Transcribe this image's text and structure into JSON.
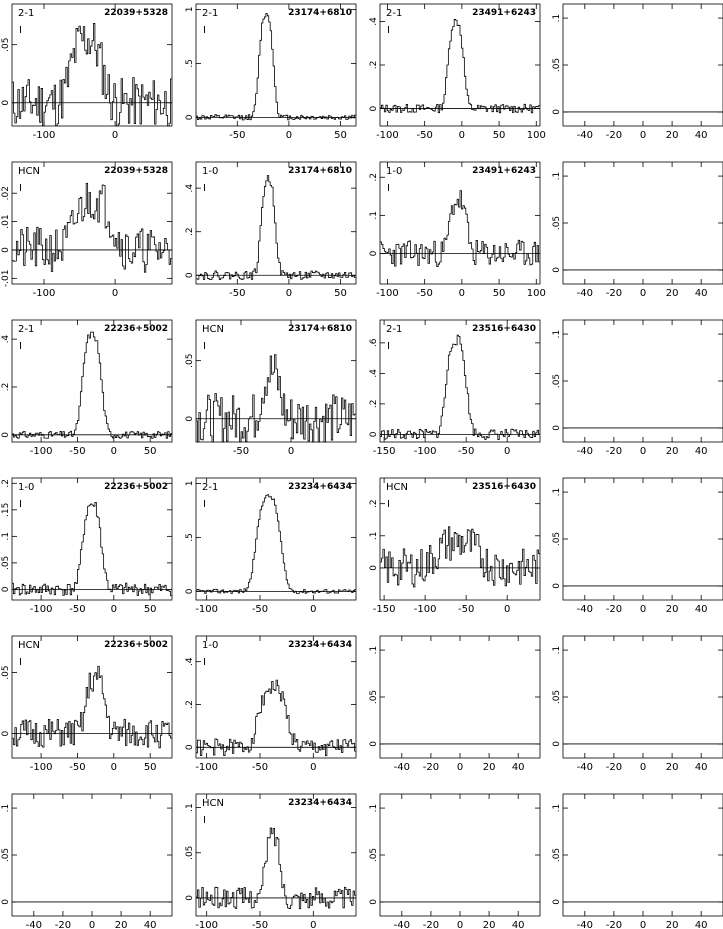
{
  "chart_data": [
    {
      "type": "line",
      "line": "2-1",
      "source": "22039+5328",
      "mark": "I",
      "xlim": [
        -145,
        80
      ],
      "ylim": [
        -0.02,
        0.085
      ],
      "xticks": [
        -100,
        0
      ],
      "yticks": [
        0,
        0.05
      ],
      "peaks": [
        {
          "c": -40,
          "w": 50,
          "a": 0.055
        }
      ],
      "noise": 0.022,
      "seed": 11
    },
    {
      "type": "line",
      "line": "2-1",
      "source": "23174+6810",
      "mark": "I",
      "xlim": [
        -90,
        65
      ],
      "ylim": [
        -0.08,
        1.05
      ],
      "xticks": [
        -50,
        0,
        50
      ],
      "yticks": [
        0,
        0.5,
        1
      ],
      "peaks": [
        {
          "c": -22,
          "w": 16,
          "a": 0.95
        }
      ],
      "noise": 0.025,
      "seed": 12
    },
    {
      "type": "line",
      "line": "2-1",
      "source": "23491+6243",
      "mark": "I",
      "xlim": [
        -110,
        105
      ],
      "ylim": [
        -0.08,
        0.48
      ],
      "xticks": [
        -100,
        -50,
        0,
        50,
        100
      ],
      "yticks": [
        0,
        0.2,
        0.4
      ],
      "peaks": [
        {
          "c": -8,
          "w": 24,
          "a": 0.4
        }
      ],
      "noise": 0.02,
      "seed": 13
    },
    {
      "type": "empty",
      "xlim": [
        -55,
        55
      ],
      "ylim": [
        -0.015,
        0.115
      ],
      "xticks": [
        -40,
        -20,
        0,
        20,
        40
      ],
      "yticks": [
        0,
        0.05,
        0.1
      ]
    },
    {
      "type": "line",
      "line": "HCN",
      "source": "22039+5328",
      "mark": "I",
      "xlim": [
        -145,
        80
      ],
      "ylim": [
        -0.012,
        0.031
      ],
      "xticks": [
        -100,
        0
      ],
      "yticks": [
        -0.01,
        0,
        0.01,
        0.02
      ],
      "peaks": [
        {
          "c": -30,
          "w": 60,
          "a": 0.018
        }
      ],
      "noise": 0.008,
      "seed": 21
    },
    {
      "type": "line",
      "line": "1-0",
      "source": "23174+6810",
      "mark": "I",
      "xlim": [
        -90,
        65
      ],
      "ylim": [
        -0.04,
        0.52
      ],
      "xticks": [
        -50,
        0,
        50
      ],
      "yticks": [
        0,
        0.2,
        0.4
      ],
      "peaks": [
        {
          "c": -20,
          "w": 16,
          "a": 0.44
        }
      ],
      "noise": 0.02,
      "seed": 22
    },
    {
      "type": "line",
      "line": "1-0",
      "source": "23491+6243",
      "mark": "I",
      "xlim": [
        -110,
        105
      ],
      "ylim": [
        -0.08,
        0.24
      ],
      "xticks": [
        -100,
        -50,
        0,
        50,
        100
      ],
      "yticks": [
        0,
        0.1,
        0.2
      ],
      "peaks": [
        {
          "c": -5,
          "w": 26,
          "a": 0.14
        }
      ],
      "noise": 0.035,
      "seed": 23
    },
    {
      "type": "empty",
      "xlim": [
        -55,
        55
      ],
      "ylim": [
        -0.015,
        0.115
      ],
      "xticks": [
        -40,
        -20,
        0,
        20,
        40
      ],
      "yticks": [
        0,
        0.05,
        0.1
      ]
    },
    {
      "type": "line",
      "line": "2-1",
      "source": "22236+5002",
      "mark": "I",
      "xlim": [
        -140,
        80
      ],
      "ylim": [
        -0.03,
        0.48
      ],
      "xticks": [
        -100,
        -50,
        0,
        50
      ],
      "yticks": [
        0,
        0.2,
        0.4
      ],
      "peaks": [
        {
          "c": -30,
          "w": 30,
          "a": 0.42
        }
      ],
      "noise": 0.015,
      "seed": 31
    },
    {
      "type": "line",
      "line": "HCN",
      "source": "23174+6810",
      "mark": "I",
      "xlim": [
        -95,
        65
      ],
      "ylim": [
        -0.02,
        0.085
      ],
      "xticks": [
        -50,
        0
      ],
      "yticks": [
        0,
        0.05
      ],
      "peaks": [
        {
          "c": -20,
          "w": 22,
          "a": 0.04
        }
      ],
      "noise": 0.022,
      "seed": 32
    },
    {
      "type": "line",
      "line": "2-1",
      "source": "23516+6430",
      "mark": "I",
      "xlim": [
        -155,
        40
      ],
      "ylim": [
        -0.05,
        0.75
      ],
      "xticks": [
        -150,
        -100,
        -50,
        0
      ],
      "yticks": [
        0,
        0.2,
        0.4,
        0.6
      ],
      "peaks": [
        {
          "c": -62,
          "w": 28,
          "a": 0.62
        }
      ],
      "noise": 0.035,
      "seed": 33
    },
    {
      "type": "empty",
      "xlim": [
        -55,
        55
      ],
      "ylim": [
        -0.015,
        0.115
      ],
      "xticks": [
        -40,
        -20,
        0,
        20,
        40
      ],
      "yticks": [
        0,
        0.05,
        0.1
      ]
    },
    {
      "type": "line",
      "line": "1-0",
      "source": "22236+5002",
      "mark": "I",
      "xlim": [
        -140,
        80
      ],
      "ylim": [
        -0.02,
        0.21
      ],
      "xticks": [
        -100,
        -50,
        0,
        50
      ],
      "yticks": [
        0,
        0.05,
        0.1,
        0.15,
        0.2
      ],
      "peaks": [
        {
          "c": -30,
          "w": 30,
          "a": 0.16
        }
      ],
      "noise": 0.012,
      "seed": 41
    },
    {
      "type": "line",
      "line": "2-1",
      "source": "23234+6434",
      "mark": "I",
      "xlim": [
        -110,
        40
      ],
      "ylim": [
        -0.08,
        1.05
      ],
      "xticks": [
        -100,
        -50,
        0
      ],
      "yticks": [
        0,
        0.5,
        1
      ],
      "peaks": [
        {
          "c": -42,
          "w": 26,
          "a": 0.88
        }
      ],
      "noise": 0.02,
      "seed": 42
    },
    {
      "type": "line",
      "line": "HCN",
      "source": "23516+6430",
      "mark": "I",
      "xlim": [
        -155,
        40
      ],
      "ylim": [
        -0.1,
        0.28
      ],
      "xticks": [
        -150,
        -100,
        -50,
        0
      ],
      "yticks": [
        0,
        0.1,
        0.2
      ],
      "peaks": [
        {
          "c": -60,
          "w": 60,
          "a": 0.08
        }
      ],
      "noise": 0.06,
      "seed": 43
    },
    {
      "type": "empty",
      "xlim": [
        -55,
        55
      ],
      "ylim": [
        -0.015,
        0.115
      ],
      "xticks": [
        -40,
        -20,
        0,
        20,
        40
      ],
      "yticks": [
        0,
        0.05,
        0.1
      ]
    },
    {
      "type": "line",
      "line": "HCN",
      "source": "22236+5002",
      "mark": "I",
      "xlim": [
        -140,
        80
      ],
      "ylim": [
        -0.02,
        0.08
      ],
      "xticks": [
        -100,
        -50,
        0,
        50
      ],
      "yticks": [
        0,
        0.05
      ],
      "peaks": [
        {
          "c": -25,
          "w": 30,
          "a": 0.045
        }
      ],
      "noise": 0.012,
      "seed": 51
    },
    {
      "type": "line",
      "line": "1-0",
      "source": "23234+6434",
      "mark": "I",
      "xlim": [
        -110,
        40
      ],
      "ylim": [
        -0.05,
        0.52
      ],
      "xticks": [
        -100,
        -50,
        0
      ],
      "yticks": [
        0,
        0.2,
        0.4
      ],
      "peaks": [
        {
          "c": -38,
          "w": 30,
          "a": 0.28
        }
      ],
      "noise": 0.04,
      "seed": 52
    },
    {
      "type": "empty",
      "xlim": [
        -55,
        55
      ],
      "ylim": [
        -0.015,
        0.115
      ],
      "xticks": [
        -40,
        -20,
        0,
        20,
        40
      ],
      "yticks": [
        0,
        0.05,
        0.1
      ]
    },
    {
      "type": "empty",
      "xlim": [
        -55,
        55
      ],
      "ylim": [
        -0.015,
        0.115
      ],
      "xticks": [
        -40,
        -20,
        0,
        20,
        40
      ],
      "yticks": [
        0,
        0.05,
        0.1
      ]
    },
    {
      "type": "empty",
      "xlim": [
        -55,
        55
      ],
      "ylim": [
        -0.015,
        0.115
      ],
      "xticks": [
        -40,
        -20,
        0,
        20,
        40
      ],
      "yticks": [
        0,
        0.05,
        0.1
      ]
    },
    {
      "type": "line",
      "line": "HCN",
      "source": "23234+6434",
      "mark": "I",
      "xlim": [
        -110,
        40
      ],
      "ylim": [
        -0.02,
        0.115
      ],
      "xticks": [
        -100,
        -50,
        0
      ],
      "yticks": [
        0,
        0.05,
        0.1
      ],
      "peaks": [
        {
          "c": -38,
          "w": 16,
          "a": 0.07
        }
      ],
      "noise": 0.012,
      "seed": 62
    },
    {
      "type": "empty",
      "xlim": [
        -55,
        55
      ],
      "ylim": [
        -0.015,
        0.115
      ],
      "xticks": [
        -40,
        -20,
        0,
        20,
        40
      ],
      "yticks": [
        0,
        0.05,
        0.1
      ]
    },
    {
      "type": "empty",
      "xlim": [
        -55,
        55
      ],
      "ylim": [
        -0.015,
        0.115
      ],
      "xticks": [
        -40,
        -20,
        0,
        20,
        40
      ],
      "yticks": [
        0,
        0.05,
        0.1
      ]
    }
  ]
}
